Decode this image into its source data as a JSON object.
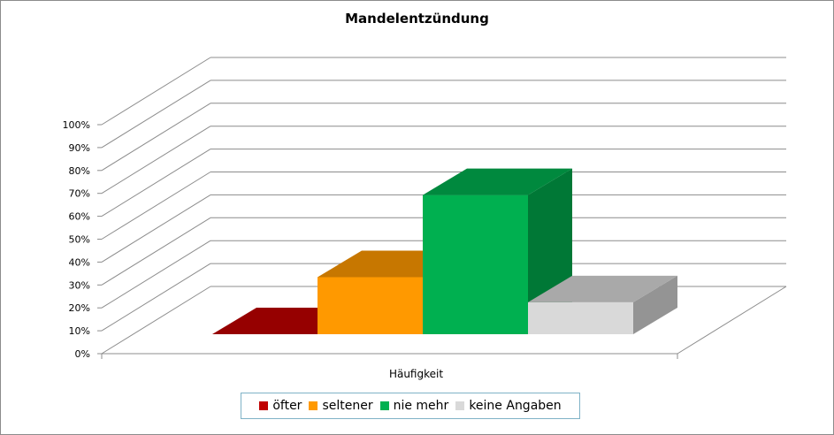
{
  "chart_data": {
    "type": "bar",
    "title": "Mandelentzündung",
    "categories": [
      "Häufigkeit"
    ],
    "series": [
      {
        "name": "öfter",
        "color": "#c00000",
        "values": [
          0
        ]
      },
      {
        "name": "seltener",
        "color": "#ff9900",
        "values": [
          25
        ]
      },
      {
        "name": "nie mehr",
        "color": "#00b050",
        "values": [
          61
        ]
      },
      {
        "name": "keine Angaben",
        "color": "#d9d9d9",
        "values": [
          14
        ]
      }
    ],
    "ylim": [
      0,
      100
    ],
    "yticks": [
      "0%",
      "10%",
      "20%",
      "30%",
      "40%",
      "50%",
      "60%",
      "70%",
      "80%",
      "90%",
      "100%"
    ],
    "xlabel": "",
    "ylabel": "",
    "grid": true,
    "legend_position": "bottom",
    "style": "3d-column"
  }
}
